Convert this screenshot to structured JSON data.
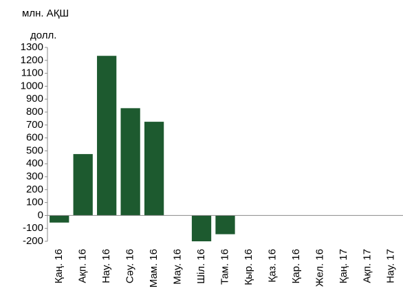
{
  "chart_data": {
    "type": "bar",
    "y_label_lines": [
      "млн. АҚШ",
      "долл."
    ],
    "categories": [
      "Қаң. 16",
      "Ақп. 16",
      "Нау. 16",
      "Сәу. 16",
      "Мам. 16",
      "Мау. 16",
      "Шіл. 16",
      "Там. 16",
      "Қыр. 16",
      "Қаз. 16",
      "Қар. 16",
      "Жел. 16",
      "Қаң. 17",
      "Ақп. 17",
      "Нау. 17"
    ],
    "values": [
      -55,
      475,
      1235,
      830,
      725,
      0,
      -200,
      -145,
      null,
      null,
      null,
      null,
      null,
      null,
      null
    ],
    "color": "#1d5a2f",
    "ylim": [
      -200,
      1300
    ],
    "yticks": [
      -200,
      -100,
      0,
      100,
      200,
      300,
      400,
      500,
      600,
      700,
      800,
      900,
      1000,
      1100,
      1200,
      1300
    ],
    "grid": false
  }
}
